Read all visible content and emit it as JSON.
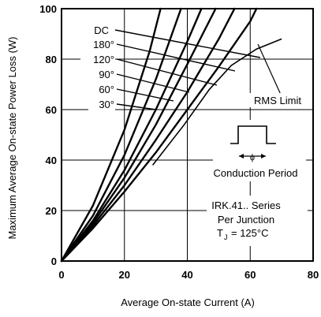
{
  "chart_data": {
    "type": "line",
    "title": "",
    "xlabel": "Average On-state Current (A)",
    "ylabel": "Maximum Average On-state Power Loss (W)",
    "xlim": [
      0,
      80
    ],
    "ylim": [
      0,
      100
    ],
    "x_ticks": [
      "0",
      "20",
      "40",
      "60",
      "80"
    ],
    "y_ticks": [
      "0",
      "20",
      "40",
      "60",
      "80",
      "100"
    ],
    "grid": true,
    "series": [
      {
        "name": "DC",
        "points": [
          [
            0,
            0
          ],
          [
            10,
            13
          ],
          [
            20,
            27.5
          ],
          [
            30,
            43
          ],
          [
            40,
            60
          ],
          [
            50,
            77
          ],
          [
            60,
            95
          ],
          [
            62,
            100
          ]
        ]
      },
      {
        "name": "180°",
        "points": [
          [
            0,
            0
          ],
          [
            10,
            14
          ],
          [
            20,
            30
          ],
          [
            30,
            48
          ],
          [
            40,
            67
          ],
          [
            50,
            88
          ],
          [
            55,
            100
          ]
        ]
      },
      {
        "name": "120°",
        "points": [
          [
            0,
            0
          ],
          [
            10,
            15
          ],
          [
            20,
            33
          ],
          [
            30,
            54
          ],
          [
            40,
            78
          ],
          [
            49,
            100
          ]
        ]
      },
      {
        "name": "90°",
        "points": [
          [
            0,
            0
          ],
          [
            10,
            16
          ],
          [
            20,
            36
          ],
          [
            30,
            60
          ],
          [
            40,
            87
          ],
          [
            44.5,
            100
          ]
        ]
      },
      {
        "name": "60°",
        "points": [
          [
            0,
            0
          ],
          [
            10,
            18
          ],
          [
            20,
            42
          ],
          [
            30,
            72
          ],
          [
            38,
            100
          ]
        ]
      },
      {
        "name": "30°",
        "points": [
          [
            0,
            0
          ],
          [
            10,
            22
          ],
          [
            20,
            52
          ],
          [
            28,
            83
          ],
          [
            31.5,
            100
          ]
        ]
      }
    ],
    "rms_limit": {
      "label": "RMS Limit",
      "points": [
        [
          29,
          38
        ],
        [
          39,
          54
        ],
        [
          47,
          68
        ],
        [
          54,
          77.5
        ],
        [
          62,
          84
        ],
        [
          70,
          88
        ]
      ]
    },
    "curve_labels": [
      "DC",
      "180°",
      "120°",
      "90°",
      "60°",
      "30°"
    ],
    "annotations": {
      "conduction_period": "Conduction Period",
      "conduction_symbol": "ϕ",
      "device_lines": [
        "IRK.41.. Series",
        "Per Junction",
        "T",
        "J",
        "= 125°C"
      ]
    }
  }
}
